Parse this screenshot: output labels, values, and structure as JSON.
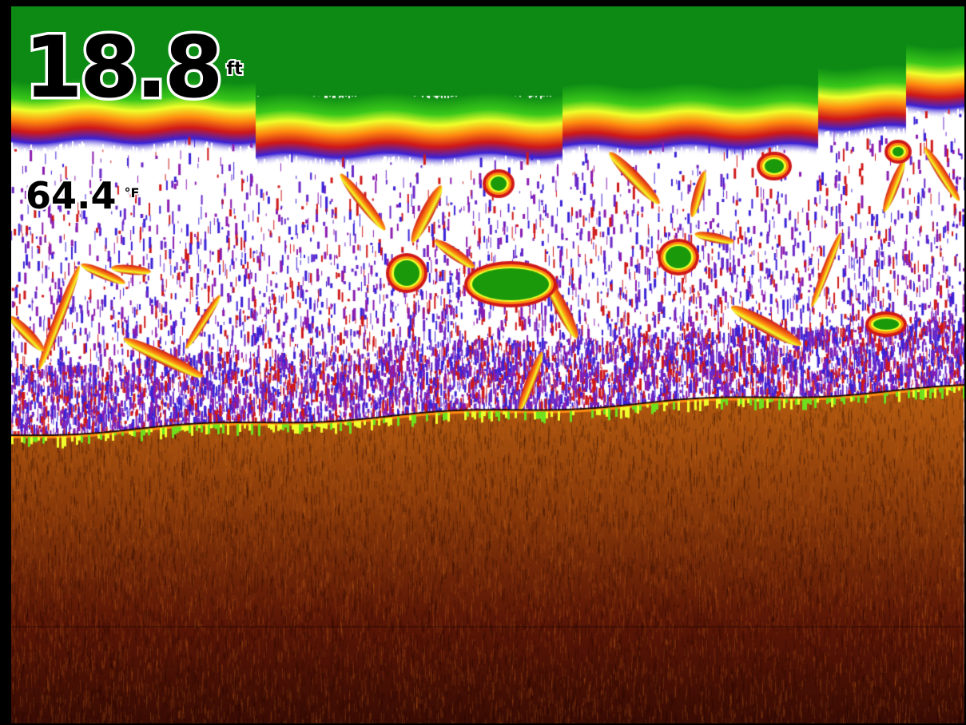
{
  "depth": {
    "value": "18.8",
    "unit": "ft"
  },
  "water_temperature": {
    "value": "64.4",
    "unit": "°F"
  },
  "sonar_palette": {
    "surface_band": "#0c8a14",
    "water_column": "#ffffff",
    "strong_return": "#1a9a0a",
    "mid_return_yellow": "#f0ff2a",
    "mid_return_orange": "#ff8a10",
    "weak_return_red": "#d01818",
    "weakest_return_blue": "#3a22d6",
    "bottom_light": "#b35a10",
    "bottom_dark": "#3a0c04",
    "frame": "#000000"
  }
}
